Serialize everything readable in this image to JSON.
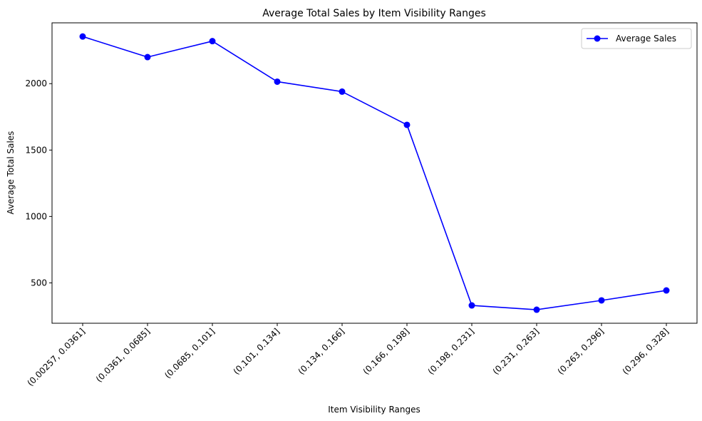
{
  "chart_data": {
    "type": "line",
    "title": "Average Total Sales by Item Visibility Ranges",
    "xlabel": "Item Visibility Ranges",
    "ylabel": "Average Total Sales",
    "categories": [
      "(0.00257, 0.0361]",
      "(0.0361, 0.0685]",
      "(0.0685, 0.101]",
      "(0.101, 0.134]",
      "(0.134, 0.166]",
      "(0.166, 0.198]",
      "(0.198, 0.231]",
      "(0.231, 0.263]",
      "(0.263, 0.296]",
      "(0.296, 0.328]"
    ],
    "series": [
      {
        "name": "Average Sales",
        "values": [
          2355,
          2200,
          2320,
          2015,
          1940,
          1690,
          330,
          298,
          368,
          443
        ],
        "color": "#0000ff",
        "marker": "circle"
      }
    ],
    "yticks": [
      500,
      1000,
      1500,
      2000
    ],
    "ylim": [
      196,
      2458
    ],
    "grid": false,
    "legend_position": "top-right"
  }
}
